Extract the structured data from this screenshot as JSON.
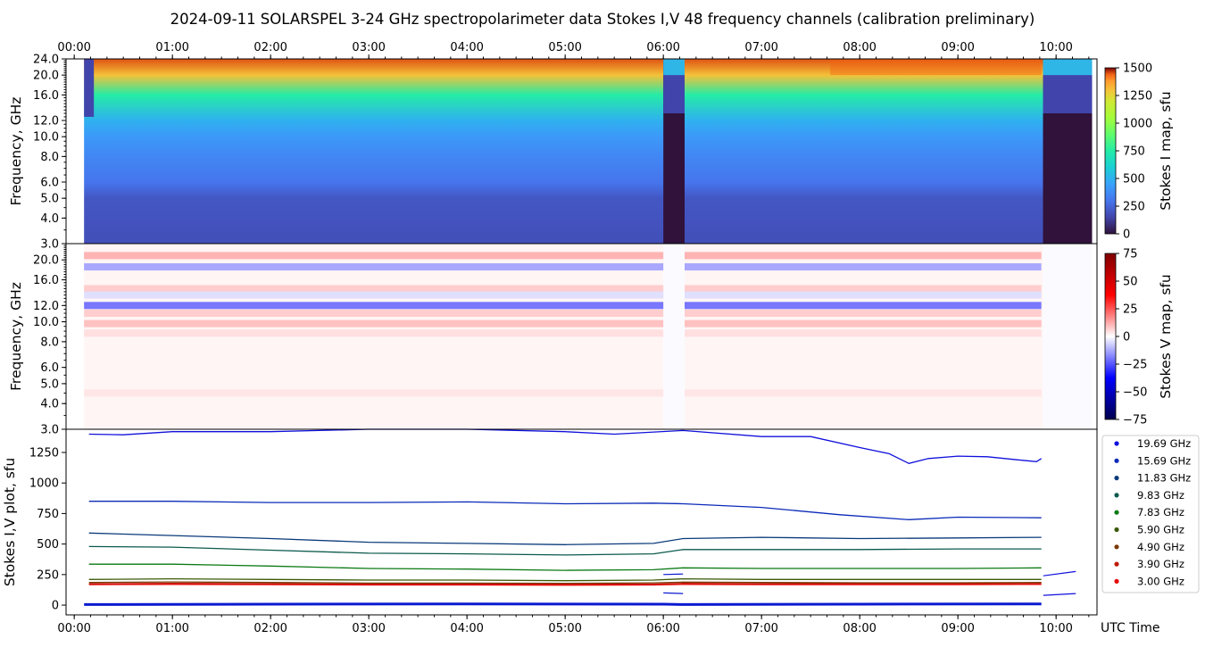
{
  "title": "2024-09-11  SOLARSPEL  3-24 GHz spectropolarimeter data   Stokes I,V   48 frequency channels   (calibration preliminary)",
  "colors": {
    "axis": "#000000",
    "background": "#ffffff"
  },
  "chart_data": [
    {
      "panel": "stokes-i-map",
      "type": "heatmap",
      "ylabel": "Frequency, GHz",
      "yscale": "log",
      "ylim": [
        3.0,
        24.0
      ],
      "xlim": [
        "23:55",
        "10:25"
      ],
      "x_ticks": [
        "00:00",
        "01:00",
        "02:00",
        "03:00",
        "04:00",
        "05:00",
        "06:00",
        "07:00",
        "08:00",
        "09:00",
        "10:00"
      ],
      "y_ticks": [
        "3.0",
        "4.0",
        "5.0",
        "6.0",
        "8.0",
        "10.0",
        "12.0",
        "16.0",
        "20.0",
        "24.0"
      ],
      "colorbar": {
        "label": "Stokes I map, sfu",
        "range": [
          0,
          1500
        ],
        "ticks": [
          "0",
          "250",
          "500",
          "750",
          "1000",
          "1250",
          "1500"
        ],
        "colormap": "turbo"
      },
      "coverage_start": "00:06",
      "coverage_end": "10:22",
      "data_gaps": [
        [
          "06:00",
          "06:13"
        ],
        [
          "09:52",
          "10:22"
        ]
      ],
      "profile_sfu_by_freq": [
        {
          "freq": 3.0,
          "sfu": 180
        },
        {
          "freq": 4.0,
          "sfu": 195
        },
        {
          "freq": 5.0,
          "sfu": 205
        },
        {
          "freq": 6.0,
          "sfu": 300
        },
        {
          "freq": 8.0,
          "sfu": 360
        },
        {
          "freq": 10.0,
          "sfu": 420
        },
        {
          "freq": 12.0,
          "sfu": 500
        },
        {
          "freq": 16.0,
          "sfu": 750
        },
        {
          "freq": 20.0,
          "sfu": 1300
        },
        {
          "freq": 24.0,
          "sfu": 1450
        }
      ]
    },
    {
      "panel": "stokes-v-map",
      "type": "heatmap",
      "ylabel": "Frequency, GHz",
      "yscale": "log",
      "ylim": [
        3.0,
        24.0
      ],
      "y_ticks": [
        "3.0",
        "4.0",
        "5.0",
        "6.0",
        "8.0",
        "10.0",
        "12.0",
        "16.0",
        "20.0"
      ],
      "colorbar": {
        "label": "Stokes V map, sfu",
        "range": [
          -75,
          75
        ],
        "ticks": [
          "−75",
          "−50",
          "−25",
          "0",
          "25",
          "50",
          "75"
        ],
        "colormap": "seismic"
      },
      "bands_sfu_by_freq": [
        {
          "freq": 21.0,
          "sfu": 12
        },
        {
          "freq": 18.5,
          "sfu": -14
        },
        {
          "freq": 14.5,
          "sfu": 8
        },
        {
          "freq": 13.5,
          "sfu": -5
        },
        {
          "freq": 12.0,
          "sfu": -22
        },
        {
          "freq": 11.0,
          "sfu": 8
        },
        {
          "freq": 9.8,
          "sfu": 10
        },
        {
          "freq": 8.8,
          "sfu": 5
        },
        {
          "freq": 4.5,
          "sfu": 4
        }
      ]
    },
    {
      "panel": "stokes-plot",
      "type": "line",
      "ylabel": "Stokes I,V plot, sfu",
      "xlabel": "UTC Time",
      "ylim": [
        -80,
        1440
      ],
      "y_ticks": [
        "0",
        "250",
        "500",
        "750",
        "1000",
        "1250"
      ],
      "x_ticks": [
        "00:00",
        "01:00",
        "02:00",
        "03:00",
        "04:00",
        "05:00",
        "06:00",
        "07:00",
        "08:00",
        "09:00",
        "10:00"
      ],
      "series": [
        {
          "name": "19.69 GHz",
          "color": "#1010dc",
          "points": [
            [
              0.15,
              1400
            ],
            [
              0.5,
              1395
            ],
            [
              1,
              1420
            ],
            [
              2,
              1420
            ],
            [
              3,
              1440
            ],
            [
              4,
              1440
            ],
            [
              5,
              1420
            ],
            [
              5.5,
              1400
            ],
            [
              6.2,
              1430
            ],
            [
              7,
              1380
            ],
            [
              7.5,
              1380
            ],
            [
              8,
              1290
            ],
            [
              8.3,
              1240
            ],
            [
              8.5,
              1160
            ],
            [
              8.7,
              1200
            ],
            [
              9,
              1220
            ],
            [
              9.3,
              1215
            ],
            [
              9.6,
              1190
            ],
            [
              9.8,
              1175
            ],
            [
              9.85,
              1200
            ]
          ]
        },
        {
          "name": "15.69 GHz",
          "color": "#0a2ab8",
          "points": [
            [
              0.15,
              850
            ],
            [
              1,
              850
            ],
            [
              2,
              840
            ],
            [
              3,
              840
            ],
            [
              4,
              845
            ],
            [
              5,
              830
            ],
            [
              5.9,
              835
            ],
            [
              6.2,
              830
            ],
            [
              7,
              800
            ],
            [
              7.8,
              740
            ],
            [
              8.5,
              700
            ],
            [
              9,
              720
            ],
            [
              9.85,
              715
            ]
          ]
        },
        {
          "name": "11.83 GHz",
          "color": "#0a3a7a",
          "points": [
            [
              0.15,
              590
            ],
            [
              1,
              570
            ],
            [
              2,
              545
            ],
            [
              3,
              515
            ],
            [
              4,
              505
            ],
            [
              5,
              495
            ],
            [
              5.9,
              505
            ],
            [
              6.2,
              545
            ],
            [
              7,
              555
            ],
            [
              8,
              545
            ],
            [
              9,
              550
            ],
            [
              9.85,
              555
            ]
          ]
        },
        {
          "name": "9.83 GHz",
          "color": "#0b5a4c",
          "points": [
            [
              0.15,
              480
            ],
            [
              1,
              475
            ],
            [
              2,
              450
            ],
            [
              3,
              425
            ],
            [
              4,
              420
            ],
            [
              5,
              410
            ],
            [
              5.9,
              420
            ],
            [
              6.2,
              455
            ],
            [
              7,
              455
            ],
            [
              8,
              455
            ],
            [
              9,
              460
            ],
            [
              9.85,
              460
            ]
          ]
        },
        {
          "name": "7.83 GHz",
          "color": "#0b7a14",
          "points": [
            [
              0.15,
              335
            ],
            [
              1,
              335
            ],
            [
              2,
              320
            ],
            [
              3,
              300
            ],
            [
              4,
              295
            ],
            [
              5,
              285
            ],
            [
              5.9,
              290
            ],
            [
              6.2,
              305
            ],
            [
              7,
              300
            ],
            [
              8,
              300
            ],
            [
              9,
              300
            ],
            [
              9.85,
              305
            ]
          ]
        },
        {
          "name": "5.90 GHz",
          "color": "#3b5a08",
          "points": [
            [
              0.15,
              210
            ],
            [
              1,
              215
            ],
            [
              2,
              210
            ],
            [
              3,
              205
            ],
            [
              4,
              205
            ],
            [
              5,
              200
            ],
            [
              5.9,
              205
            ],
            [
              6.2,
              215
            ],
            [
              7,
              210
            ],
            [
              8,
              210
            ],
            [
              9,
              210
            ],
            [
              9.85,
              210
            ]
          ]
        },
        {
          "name": "4.90 GHz",
          "color": "#7a3a06",
          "points": [
            [
              0.15,
              185
            ],
            [
              1,
              190
            ],
            [
              2,
              185
            ],
            [
              3,
              180
            ],
            [
              4,
              180
            ],
            [
              5,
              178
            ],
            [
              5.9,
              182
            ],
            [
              6.2,
              188
            ],
            [
              7,
              185
            ],
            [
              8,
              183
            ],
            [
              9,
              183
            ],
            [
              9.85,
              185
            ]
          ]
        },
        {
          "name": "3.90 GHz",
          "color": "#c01808",
          "points": [
            [
              0.15,
              175
            ],
            [
              1,
              178
            ],
            [
              2,
              175
            ],
            [
              3,
              172
            ],
            [
              4,
              172
            ],
            [
              5,
              170
            ],
            [
              5.9,
              172
            ],
            [
              6.2,
              178
            ],
            [
              7,
              175
            ],
            [
              8,
              175
            ],
            [
              9,
              175
            ],
            [
              9.85,
              176
            ]
          ]
        },
        {
          "name": "3.00 GHz",
          "color": "#e80808",
          "points": [
            [
              0.15,
              168
            ],
            [
              1,
              170
            ],
            [
              2,
              168
            ],
            [
              3,
              165
            ],
            [
              4,
              165
            ],
            [
              5,
              163
            ],
            [
              5.9,
              165
            ],
            [
              6.2,
              170
            ],
            [
              7,
              168
            ],
            [
              8,
              168
            ],
            [
              9,
              168
            ],
            [
              9.85,
              170
            ]
          ]
        }
      ],
      "stokes_v_trace": {
        "color": "#0a1ad0",
        "points": [
          [
            0.1,
            5
          ],
          [
            2,
            8
          ],
          [
            4,
            10
          ],
          [
            6,
            8
          ],
          [
            6.2,
            5
          ],
          [
            8,
            8
          ],
          [
            9.85,
            10
          ]
        ]
      },
      "gap_segment": {
        "color": "#0a1ad0",
        "points": [
          [
            6.0,
            250
          ],
          [
            6.2,
            255
          ]
        ],
        "points_low": [
          [
            6.0,
            100
          ],
          [
            6.2,
            95
          ]
        ]
      },
      "tail_segment": {
        "color": "#1010dc",
        "points": [
          [
            9.87,
            240
          ],
          [
            10.2,
            275
          ]
        ],
        "points_low": [
          [
            9.87,
            80
          ],
          [
            10.2,
            95
          ]
        ]
      },
      "legend": "right-outside"
    }
  ]
}
